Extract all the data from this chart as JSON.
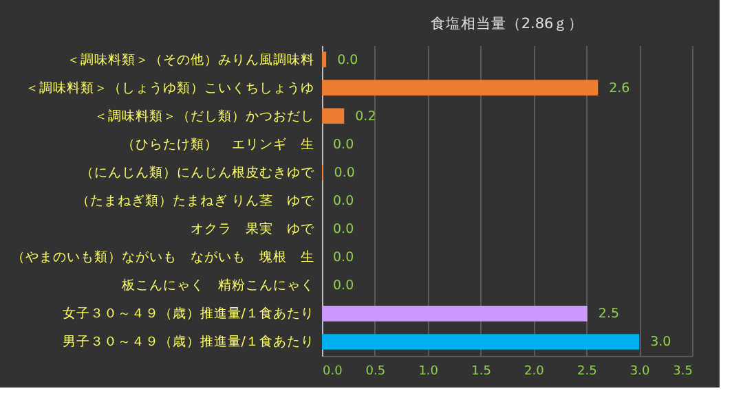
{
  "chart_data": {
    "type": "bar",
    "orientation": "horizontal",
    "title": "食塩相当量（2.86ｇ）",
    "categories": [
      "＜調味料類＞（その他）みりん風調味料",
      "＜調味料類＞（しょうゆ類）こいくちしょうゆ",
      "＜調味料類＞（だし類）かつおだし",
      "（ひらたけ類）　エリンギ　生",
      "（にんじん類）にんじん根皮むきゆで",
      "（たまねぎ類）たまねぎ りん茎　ゆで",
      "オクラ　果実　ゆで",
      "（やまのいも類）ながいも　ながいも　塊根　生",
      "板こんにゃく　精粉こんにゃく",
      "女子３０～４９（歳）推進量/１食あたり",
      "男子３０～４９（歳）推進量/１食あたり"
    ],
    "values": [
      0.04,
      2.61,
      0.21,
      0,
      0.01,
      0,
      0,
      0,
      0,
      2.51,
      3.0
    ],
    "value_labels": [
      "0.0",
      "2.6",
      "0.2",
      "0.0",
      "0.0",
      "0.0",
      "0.0",
      "0.0",
      "0.0",
      "2.5",
      "3.0"
    ],
    "colors": [
      "#ed7d31",
      "#ed7d31",
      "#ed7d31",
      "#ed7d31",
      "#ed7d31",
      "#ed7d31",
      "#ed7d31",
      "#ed7d31",
      "#ed7d31",
      "#cc99ff",
      "#00b0f0"
    ],
    "xlim": [
      0,
      3.5
    ],
    "xticks": [
      {
        "value": 0,
        "label": "0.0"
      },
      {
        "value": 0.5,
        "label": "0.5"
      },
      {
        "value": 1,
        "label": "1.0"
      },
      {
        "value": 1.5,
        "label": "1.5"
      },
      {
        "value": 2,
        "label": "2.0"
      },
      {
        "value": 2.5,
        "label": "2.5"
      },
      {
        "value": 3,
        "label": "3.0"
      },
      {
        "value": 3.5,
        "label": "3.5"
      }
    ],
    "grid": "x"
  }
}
